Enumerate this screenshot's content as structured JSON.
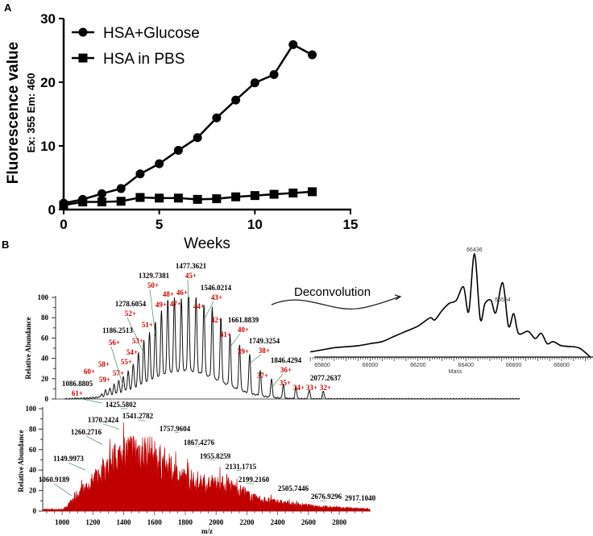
{
  "panels": {
    "a": "A",
    "b": "B"
  },
  "chart_data": [
    {
      "type": "line",
      "panel": "A",
      "xlabel": "Weeks",
      "ylabel": "Fluorescence value",
      "ylabel2": "Ex: 355 Em: 460",
      "xlim": [
        0,
        15
      ],
      "ylim": [
        0,
        30
      ],
      "xticks": [
        "0",
        "5",
        "10",
        "15"
      ],
      "yticks": [
        "0",
        "10",
        "20",
        "30"
      ],
      "legend_position": "top-left",
      "x": [
        0,
        1,
        2,
        3,
        4,
        5,
        6,
        7,
        8,
        9,
        10,
        11,
        12,
        13
      ],
      "series": [
        {
          "name": "HSA+Glucose",
          "marker": "circle",
          "values": [
            1.0,
            1.6,
            2.5,
            3.3,
            5.6,
            7.2,
            9.3,
            11.3,
            14.4,
            17.2,
            19.9,
            21.2,
            25.9,
            24.3
          ]
        },
        {
          "name": "HSA in PBS",
          "marker": "square",
          "values": [
            0.7,
            1.2,
            1.2,
            1.3,
            1.9,
            1.8,
            1.8,
            1.6,
            1.7,
            2.0,
            2.2,
            2.4,
            2.6,
            2.8
          ]
        }
      ]
    },
    {
      "type": "line",
      "panel": "B-top",
      "ylabel": "Relative Abundance",
      "yticks": [
        "0",
        "20",
        "40",
        "60",
        "80",
        "100"
      ],
      "ylim": [
        0,
        100
      ],
      "xlim": [
        886,
        2950
      ],
      "color": "#000000",
      "label_color": "#cc0000",
      "peaks": [
        {
          "z": "61+",
          "height": 4
        },
        {
          "z": "60+",
          "height": 8
        },
        {
          "z": "59+",
          "height": 10
        },
        {
          "z": "58+",
          "height": 13
        },
        {
          "z": "57+",
          "height": 17
        },
        {
          "z": "56+",
          "height": 20
        },
        {
          "z": "55+",
          "height": 25
        },
        {
          "z": "54+",
          "height": 32
        },
        {
          "z": "53+",
          "height": 42
        },
        {
          "z": "52+",
          "height": 53
        },
        {
          "z": "51+",
          "height": 60
        },
        {
          "z": "50+",
          "height": 70
        },
        {
          "z": "49+",
          "height": 80
        },
        {
          "z": "48+",
          "height": 91
        },
        {
          "z": "47+",
          "height": 93
        },
        {
          "z": "46+",
          "height": 91
        },
        {
          "z": "45+",
          "height": 100
        },
        {
          "z": "44+",
          "height": 95
        },
        {
          "z": "43+",
          "height": 86
        },
        {
          "z": "42+",
          "height": 84
        },
        {
          "z": "41+",
          "height": 75
        },
        {
          "z": "40+",
          "height": 59
        },
        {
          "z": "39+",
          "height": 51
        },
        {
          "z": "38+",
          "height": 43
        },
        {
          "z": "37+",
          "height": 27
        },
        {
          "z": "36+",
          "height": 19
        },
        {
          "z": "35+",
          "height": 14
        },
        {
          "z": "34+",
          "height": 12
        },
        {
          "z": "33+",
          "height": 9
        },
        {
          "z": "32+",
          "height": 8
        }
      ],
      "mz_labels": [
        {
          "text": "1086.8805",
          "z": "61+"
        },
        {
          "text": "1186.2513",
          "z": "56+"
        },
        {
          "text": "1278.6054",
          "z": "52+"
        },
        {
          "text": "1329.7381",
          "z": "50+"
        },
        {
          "text": "1477.3621",
          "z": "45+"
        },
        {
          "text": "1546.0214",
          "z": "43+"
        },
        {
          "text": "1661.8839",
          "z": "40+"
        },
        {
          "text": "1749.3254",
          "z": "38+"
        },
        {
          "text": "1846.4294",
          "z": "36+"
        },
        {
          "text": "2077.2637",
          "z": "32+"
        }
      ]
    },
    {
      "type": "line",
      "panel": "B-inset",
      "title": "Deconvolution",
      "xlabel": "Mass",
      "xticks": [
        "65800",
        "66000",
        "66200",
        "66400",
        "66600",
        "66800"
      ],
      "annotations": [
        "66436",
        "66554"
      ],
      "x": [
        65750,
        65800,
        65850,
        65900,
        65950,
        66000,
        66050,
        66090,
        66100,
        66150,
        66200,
        66250,
        66270,
        66300,
        66330,
        66360,
        66390,
        66412,
        66436,
        66460,
        66480,
        66505,
        66525,
        66554,
        66578,
        66600,
        66620,
        66660,
        66690,
        66715,
        66740,
        66765,
        66800,
        66850,
        66880,
        66920
      ],
      "y": [
        5,
        7,
        9,
        10,
        11,
        13,
        15,
        19,
        20,
        25,
        30,
        38,
        36,
        45,
        52,
        55,
        68,
        44,
        100,
        37,
        52,
        55,
        43,
        72,
        30,
        42,
        23,
        25,
        18,
        23,
        13,
        15,
        11,
        10,
        8,
        0
      ]
    },
    {
      "type": "line",
      "panel": "B-bottom",
      "xlabel": "m/z",
      "ylabel": "Relative Abundance",
      "xlim": [
        900,
        2950
      ],
      "ylim": [
        0,
        100
      ],
      "xticks": [
        "1000",
        "1200",
        "1400",
        "1600",
        "1800",
        "2000",
        "2200",
        "2400",
        "2600",
        "2800"
      ],
      "yticks": [
        "0",
        "20",
        "40",
        "60",
        "80",
        "100"
      ],
      "color": "#c00000",
      "labeled_peaks": [
        {
          "mz": 1060.9189,
          "height": 15,
          "text": "1060.9189"
        },
        {
          "mz": 1149.9973,
          "height": 40,
          "text": "1149.9973"
        },
        {
          "mz": 1260.2716,
          "height": 65,
          "text": "1260.2716"
        },
        {
          "mz": 1370.2424,
          "height": 80,
          "text": "1370.2424"
        },
        {
          "mz": 1425.5802,
          "height": 100,
          "text": "1425.5802"
        },
        {
          "mz": 1541.2782,
          "height": 88,
          "text": "1541.2782"
        },
        {
          "mz": 1757.9604,
          "height": 77,
          "text": "1757.9604"
        },
        {
          "mz": 1867.4276,
          "height": 63,
          "text": "1867.4276"
        },
        {
          "mz": 1955.8259,
          "height": 50,
          "text": "1955.8259"
        },
        {
          "mz": 2131.1715,
          "height": 40,
          "text": "2131.1715"
        },
        {
          "mz": 2199.216,
          "height": 27,
          "text": "2199.2160"
        },
        {
          "mz": 2505.7446,
          "height": 19,
          "text": "2505.7446"
        },
        {
          "mz": 2676.9296,
          "height": 10,
          "text": "2676.9296"
        },
        {
          "mz": 2917.104,
          "height": 8,
          "text": "2917.1040"
        }
      ]
    }
  ]
}
